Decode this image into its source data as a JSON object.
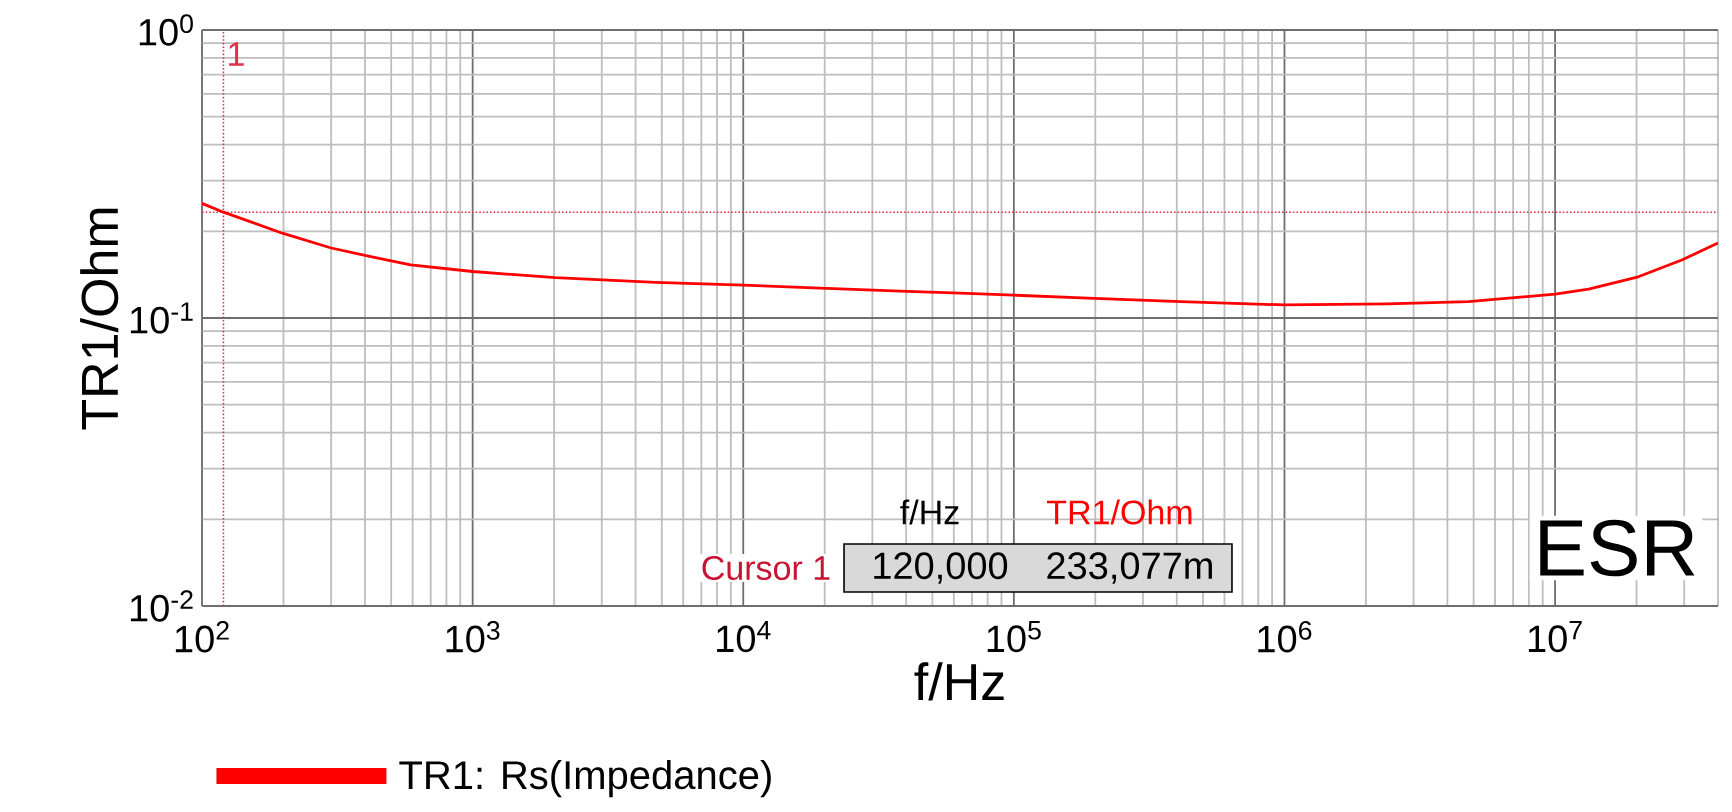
{
  "chart_data": {
    "type": "line",
    "xlabel": "f/Hz",
    "ylabel": "TR1/Ohm",
    "log": "xy",
    "grid": true,
    "legend": "bottom",
    "xlim": [
      100,
      40000000
    ],
    "ylim": [
      0.01,
      1
    ],
    "xticks": [
      {
        "value": 100,
        "label": "10$^{2}$"
      },
      {
        "value": 1000,
        "label": "10$^{3}$"
      },
      {
        "value": 10000,
        "label": "10$^{4}$"
      },
      {
        "value": 100000,
        "label": "10$^{5}$"
      },
      {
        "value": 1000000,
        "label": "10$^{6}$"
      },
      {
        "value": 10000000,
        "label": "10$^{7}$"
      }
    ],
    "yticks": [
      {
        "value": 0.01,
        "label": "10$^{-2}$"
      },
      {
        "value": 0.1,
        "label": "10$^{-1}$"
      },
      {
        "value": 1,
        "label": "10$^{0}$"
      }
    ],
    "series": [
      {
        "name": "TR1: Rs(Impedance)",
        "color": "#ff0000",
        "x": [
          100,
          120,
          198,
          300,
          451,
          590,
          1000,
          2020,
          4740,
          10000,
          19200,
          38000,
          63400,
          100000,
          198000,
          414000,
          1000000,
          2410000,
          4780000,
          10000000,
          13300000,
          20300000,
          29400000,
          40000000
        ],
        "values": [
          0.25,
          0.233,
          0.197,
          0.175,
          0.161,
          0.153,
          0.145,
          0.138,
          0.133,
          0.13,
          0.127,
          0.124,
          0.122,
          0.12,
          0.117,
          0.114,
          0.111,
          0.112,
          0.114,
          0.121,
          0.126,
          0.139,
          0.159,
          0.182
        ]
      }
    ],
    "ref_lines": [
      {
        "axis": "x",
        "value": 120,
        "color": "#e0304a",
        "line_style": "dotted"
      },
      {
        "axis": "y",
        "value": 0.233,
        "color": "#e0304a",
        "line_style": "dotted"
      }
    ],
    "annotations": [
      "f/Hz",
      "TR1/Ohm",
      "Cursor 1",
      "120,000",
      "233,077m",
      "ESR",
      "1"
    ]
  }
}
